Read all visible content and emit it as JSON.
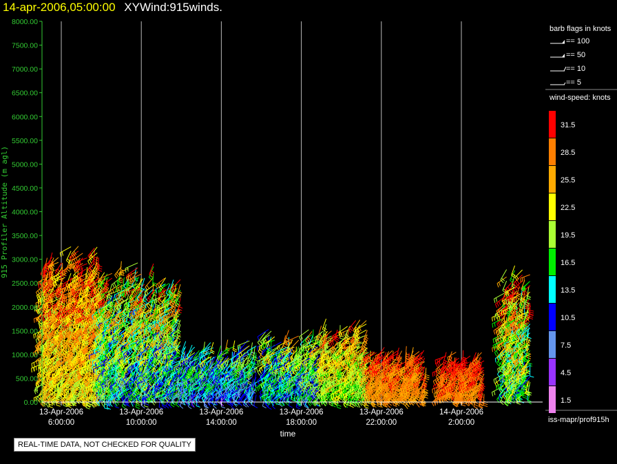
{
  "header": {
    "date": "14-apr-2006,05:00:00",
    "product": "XYWind:915winds."
  },
  "legend": {
    "barb_title": "barb flags in knots",
    "barbs": [
      {
        "label": "== 100"
      },
      {
        "label": "== 50"
      },
      {
        "label": "== 10"
      },
      {
        "label": "== 5"
      }
    ],
    "speed_title": "wind-speed: knots",
    "speed_bins": [
      {
        "label": "31.5",
        "color": "#ff0000"
      },
      {
        "label": "28.5",
        "color": "#ff7f00"
      },
      {
        "label": "25.5",
        "color": "#ffaa00"
      },
      {
        "label": "22.5",
        "color": "#ffff00"
      },
      {
        "label": "19.5",
        "color": "#aaff33"
      },
      {
        "label": "16.5",
        "color": "#00ee00"
      },
      {
        "label": "13.5",
        "color": "#00ffff"
      },
      {
        "label": "10.5",
        "color": "#0000ff"
      },
      {
        "label": "7.5",
        "color": "#6495ed"
      },
      {
        "label": "4.5",
        "color": "#9933ff"
      },
      {
        "label": "1.5",
        "color": "#ee82ee"
      }
    ]
  },
  "source": "iss-mapr/prof915h",
  "quality_note": "REAL-TIME DATA, NOT CHECKED FOR QUALITY",
  "chart_data": {
    "type": "scatter",
    "title": "14-apr-2006,05:00:00  XYWind:915winds.",
    "xlabel": "time",
    "ylabel": "915 Profiler Altitude (m agl)",
    "ylim": [
      0,
      8000
    ],
    "yticks": [
      "0.00",
      "500.00",
      "1000.00",
      "1500.00",
      "2000.00",
      "2500.00",
      "3000.00",
      "3500.00",
      "4000.00",
      "4500.00",
      "5000.00",
      "5500.00",
      "6000.00",
      "6500.00",
      "7000.00",
      "7500.00",
      "8000.00"
    ],
    "xrange_hours": [
      4,
      28
    ],
    "xticks": [
      {
        "hour": 6,
        "date": "13-Apr-2006",
        "time": "6:00:00"
      },
      {
        "hour": 10,
        "date": "13-Apr-2006",
        "time": "10:00:00"
      },
      {
        "hour": 14,
        "date": "13-Apr-2006",
        "time": "14:00:00"
      },
      {
        "hour": 18,
        "date": "13-Apr-2006",
        "time": "18:00:00"
      },
      {
        "hour": 22,
        "date": "13-Apr-2006",
        "time": "22:00:00"
      },
      {
        "hour": 26,
        "date": "14-Apr-2006",
        "time": "2:00:00"
      }
    ],
    "grid": "vertical",
    "colors": {
      "axis_y": "#33cc33",
      "axis_x": "#ffffff"
    },
    "clusters": [
      {
        "t0": 4.1,
        "t1": 8.2,
        "h0": 150,
        "h1": 3400,
        "speed_lo": 15,
        "speed_hi": 33
      },
      {
        "t0": 8.0,
        "t1": 12.0,
        "h0": 150,
        "h1": 3000,
        "speed_lo": 3,
        "speed_hi": 30
      },
      {
        "t0": 12.0,
        "t1": 15.8,
        "h0": 150,
        "h1": 1400,
        "speed_lo": 2,
        "speed_hi": 22
      },
      {
        "t0": 16.2,
        "t1": 19.0,
        "h0": 150,
        "h1": 1600,
        "speed_lo": 3,
        "speed_hi": 26
      },
      {
        "t0": 19.0,
        "t1": 21.5,
        "h0": 150,
        "h1": 1800,
        "speed_lo": 12,
        "speed_hi": 30
      },
      {
        "t0": 21.5,
        "t1": 24.3,
        "h0": 150,
        "h1": 1200,
        "speed_lo": 22,
        "speed_hi": 33
      },
      {
        "t0": 25.0,
        "t1": 27.2,
        "h0": 150,
        "h1": 1150,
        "speed_lo": 24,
        "speed_hi": 34
      },
      {
        "t0": 28.1,
        "t1": 29.5,
        "h0": 200,
        "h1": 3000,
        "speed_lo": 5,
        "speed_hi": 33
      }
    ]
  }
}
